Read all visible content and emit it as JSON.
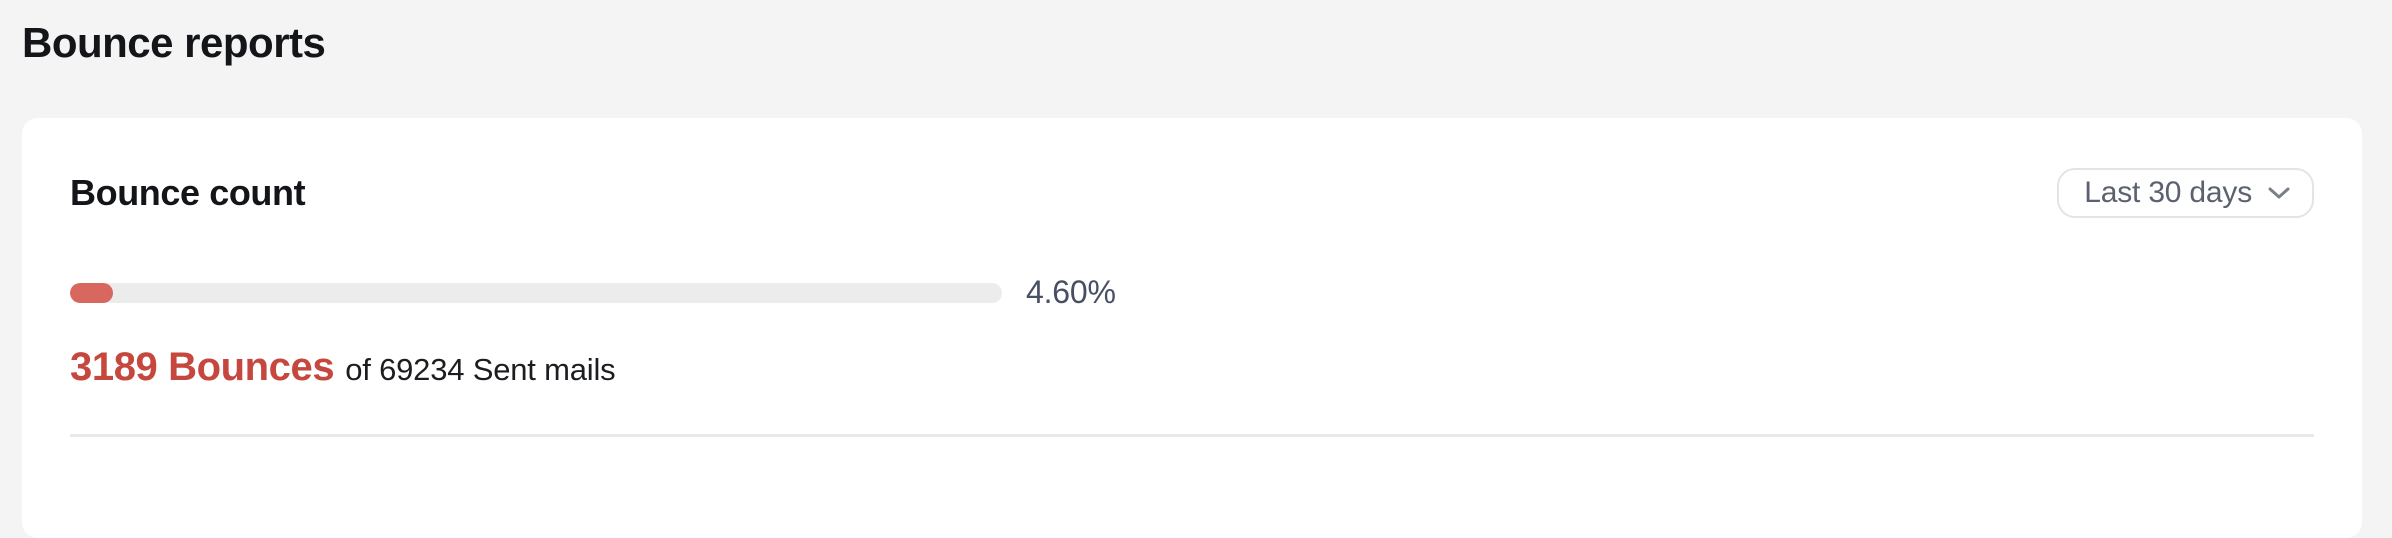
{
  "page": {
    "title": "Bounce reports",
    "background_color": "#f4f4f4"
  },
  "card": {
    "heading": "Bounce count",
    "filter": {
      "selected_value": "Last 30 days",
      "icon": "chevron-down-icon"
    },
    "progress": {
      "percent_value": 4.6,
      "percent_label": "4.60%",
      "track_color": "#ececec",
      "fill_color": "#d8685f"
    },
    "stats": {
      "bounces_label": "3189 Bounces",
      "bounces_value": 3189,
      "sent_label": "of 69234 Sent mails",
      "sent_value": 69234,
      "accent_color": "#c5473e"
    }
  }
}
